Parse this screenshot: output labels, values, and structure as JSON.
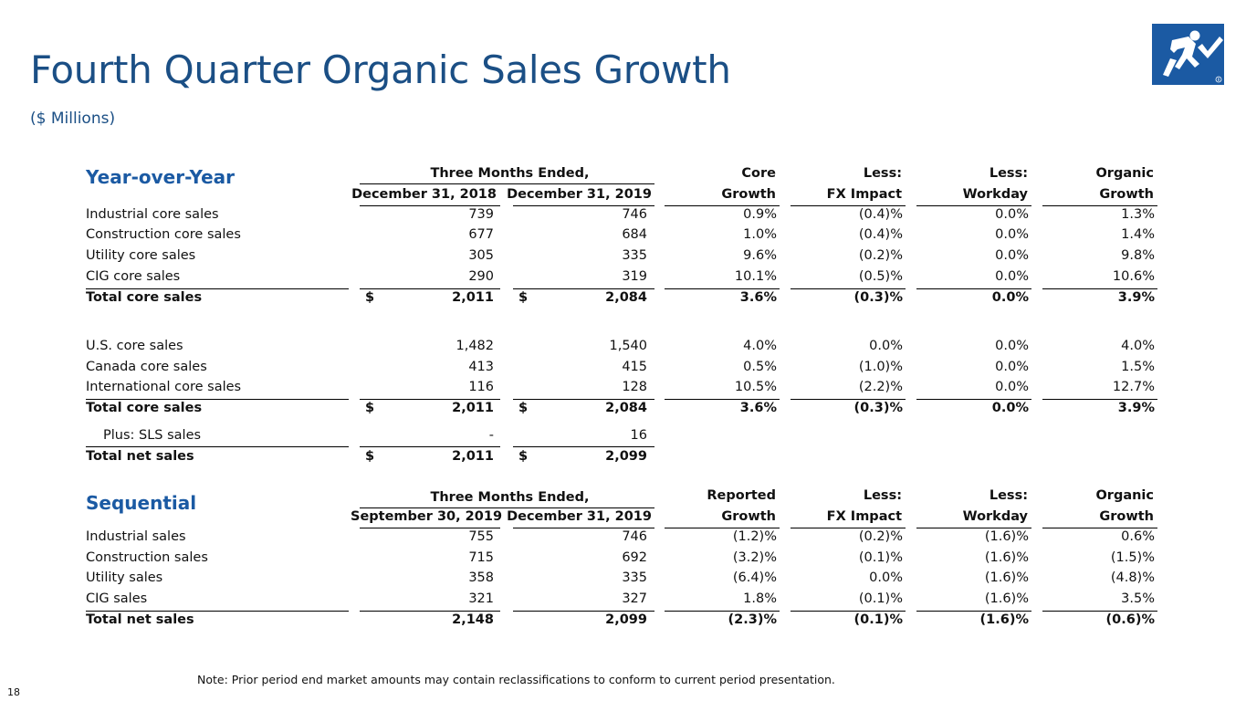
{
  "title": "Fourth Quarter Organic Sales Growth",
  "subtitle": "($ Millions)",
  "yoy": {
    "section_title": "Year-over-Year",
    "group_header": "Three Months Ended,",
    "headers": {
      "col1": "December 31, 2018",
      "col2": "December 31, 2019",
      "c3_top": "Core",
      "c3_bot": "Growth",
      "c4_top": "Less:",
      "c4_bot": "FX Impact",
      "c5_top": "Less:",
      "c5_bot": "Workday",
      "c6_top": "Organic",
      "c6_bot": "Growth"
    },
    "rows": [
      {
        "label": "Industrial core sales",
        "v1": "739",
        "v2": "746",
        "g": "0.9%",
        "fx": "(0.4)%",
        "wd": "0.0%",
        "org": "1.3%"
      },
      {
        "label": "Construction core sales",
        "v1": "677",
        "v2": "684",
        "g": "1.0%",
        "fx": "(0.4)%",
        "wd": "0.0%",
        "org": "1.4%"
      },
      {
        "label": "Utility core sales",
        "v1": "305",
        "v2": "335",
        "g": "9.6%",
        "fx": "(0.2)%",
        "wd": "0.0%",
        "org": "9.8%"
      },
      {
        "label": "CIG core sales",
        "v1": "290",
        "v2": "319",
        "g": "10.1%",
        "fx": "(0.5)%",
        "wd": "0.0%",
        "org": "10.6%"
      },
      {
        "label": "Total core sales",
        "cur": "$",
        "v1": "2,011",
        "v2": "2,084",
        "g": "3.6%",
        "fx": "(0.3)%",
        "wd": "0.0%",
        "org": "3.9%"
      },
      {
        "label": "U.S. core sales",
        "v1": "1,482",
        "v2": "1,540",
        "g": "4.0%",
        "fx": "0.0%",
        "wd": "0.0%",
        "org": "4.0%"
      },
      {
        "label": "Canada core sales",
        "v1": "413",
        "v2": "415",
        "g": "0.5%",
        "fx": "(1.0)%",
        "wd": "0.0%",
        "org": "1.5%"
      },
      {
        "label": "International core sales",
        "v1": "116",
        "v2": "128",
        "g": "10.5%",
        "fx": "(2.2)%",
        "wd": "0.0%",
        "org": "12.7%"
      },
      {
        "label": "Total core sales",
        "cur": "$",
        "v1": "2,011",
        "v2": "2,084",
        "g": "3.6%",
        "fx": "(0.3)%",
        "wd": "0.0%",
        "org": "3.9%"
      },
      {
        "label": "Plus: SLS sales",
        "v1": "-",
        "v2": "16"
      },
      {
        "label": "Total net sales",
        "cur": "$",
        "v1": "2,011",
        "v2": "2,099"
      }
    ]
  },
  "seq": {
    "section_title": "Sequential",
    "group_header": "Three Months Ended,",
    "headers": {
      "col1": "September 30, 2019",
      "col2": "December 31, 2019",
      "c3_top": "Reported",
      "c3_bot": "Growth",
      "c4_top": "Less:",
      "c4_bot": "FX Impact",
      "c5_top": "Less:",
      "c5_bot": "Workday",
      "c6_top": "Organic",
      "c6_bot": "Growth"
    },
    "rows": [
      {
        "label": "Industrial sales",
        "v1": "755",
        "v2": "746",
        "g": "(1.2)%",
        "fx": "(0.2)%",
        "wd": "(1.6)%",
        "org": "0.6%"
      },
      {
        "label": "Construction sales",
        "v1": "715",
        "v2": "692",
        "g": "(3.2)%",
        "fx": "(0.1)%",
        "wd": "(1.6)%",
        "org": "(1.5)%"
      },
      {
        "label": "Utility sales",
        "v1": "358",
        "v2": "335",
        "g": "(6.4)%",
        "fx": "0.0%",
        "wd": "(1.6)%",
        "org": "(4.8)%"
      },
      {
        "label": "CIG sales",
        "v1": "321",
        "v2": "327",
        "g": "1.8%",
        "fx": "(0.1)%",
        "wd": "(1.6)%",
        "org": "3.5%"
      },
      {
        "label": "Total net sales",
        "v1": "2,148",
        "v2": "2,099",
        "g": "(2.3)%",
        "fx": "(0.1)%",
        "wd": "(1.6)%",
        "org": "(0.6)%"
      }
    ]
  },
  "note": "Note: Prior period end market amounts may contain reclassifications to conform to current period presentation.",
  "page_number": "18",
  "colors": {
    "title": "#1b4f85",
    "section": "#1b5aa3",
    "logo_bg": "#1b5aa3"
  },
  "logo_icon": "running-man-checkmark-logo"
}
